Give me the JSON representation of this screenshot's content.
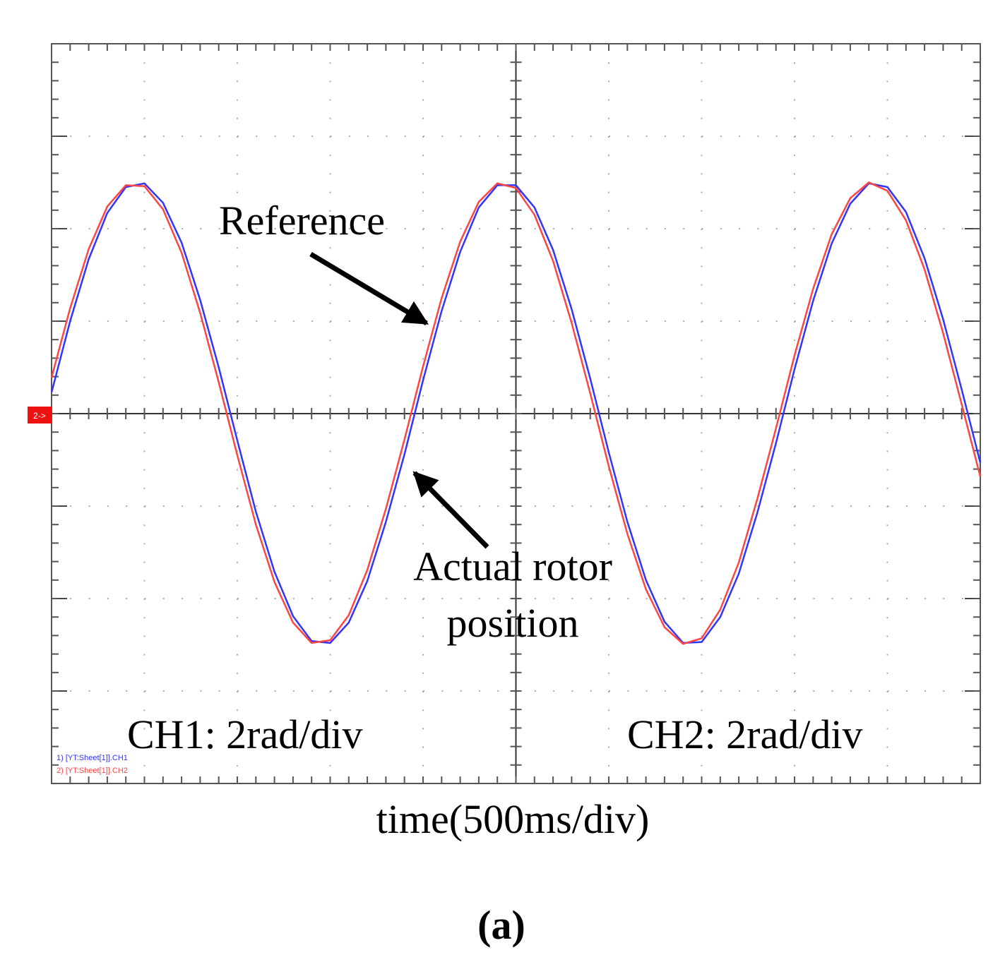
{
  "chart_data": {
    "type": "line",
    "xlabel": "time(500ms/div)",
    "caption": "(a)",
    "channel_marker": "2->",
    "annotations": [
      "Reference",
      "Actual rotor",
      "position",
      "CH1: 2rad/div",
      "CH2: 2rad/div"
    ],
    "xlim": [
      0,
      10
    ],
    "ylim": [
      -4,
      4
    ],
    "xticks": [
      0,
      1,
      2,
      3,
      4,
      5,
      6,
      7,
      8,
      9,
      10
    ],
    "yticks": [
      -4,
      -3,
      -2,
      -1,
      0,
      1,
      2,
      3,
      4
    ],
    "grid": true,
    "x": [
      0,
      0.2,
      0.4,
      0.6,
      0.8,
      1,
      1.2,
      1.4,
      1.6,
      1.8,
      2,
      2.2,
      2.4,
      2.6,
      2.8,
      3,
      3.2,
      3.4,
      3.6,
      3.8,
      4,
      4.2,
      4.4,
      4.6,
      4.8,
      5,
      5.2,
      5.4,
      5.6,
      5.8,
      6,
      6.2,
      6.4,
      6.6,
      6.8,
      7,
      7.2,
      7.4,
      7.6,
      7.8,
      8,
      8.2,
      8.4,
      8.6,
      8.8,
      9,
      9.2,
      9.4,
      9.6,
      9.8,
      10
    ],
    "series": [
      {
        "name": "1) [YT:Sheet[1]].CH1",
        "color": "#3333ff",
        "values": [
          0.23,
          1.0,
          1.67,
          2.17,
          2.45,
          2.49,
          2.28,
          1.85,
          1.23,
          0.5,
          -0.29,
          -1.06,
          -1.71,
          -2.19,
          -2.46,
          -2.48,
          -2.26,
          -1.81,
          -1.17,
          -0.44,
          0.36,
          1.11,
          1.75,
          2.23,
          2.47,
          2.47,
          2.23,
          1.77,
          1.13,
          0.38,
          -0.42,
          -1.17,
          -1.8,
          -2.25,
          -2.48,
          -2.47,
          -2.2,
          -1.73,
          -1.07,
          -0.32,
          0.48,
          1.22,
          1.84,
          2.27,
          2.49,
          2.45,
          2.18,
          1.68,
          1.02,
          0.26,
          -0.53
        ]
      },
      {
        "name": "2) [YT:Sheet[1]].CH2",
        "color": "#ff4444",
        "values": [
          0.39,
          1.14,
          1.78,
          2.24,
          2.47,
          2.46,
          2.21,
          1.74,
          1.09,
          0.34,
          -0.45,
          -1.2,
          -1.82,
          -2.26,
          -2.48,
          -2.45,
          -2.18,
          -1.69,
          -1.03,
          -0.28,
          0.51,
          1.25,
          1.86,
          2.29,
          2.49,
          2.44,
          2.15,
          1.65,
          0.98,
          0.22,
          -0.57,
          -1.3,
          -1.9,
          -2.31,
          -2.49,
          -2.43,
          -2.12,
          -1.61,
          -0.92,
          -0.16,
          0.63,
          1.35,
          1.94,
          2.33,
          2.5,
          2.41,
          2.09,
          1.56,
          0.87,
          0.1,
          -0.68
        ]
      }
    ]
  }
}
